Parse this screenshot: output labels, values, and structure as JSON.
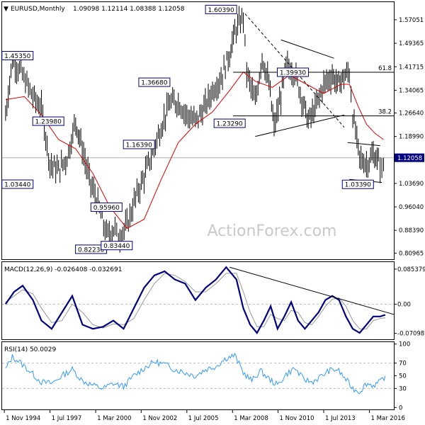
{
  "header": {
    "symbol": "EURUSD,Monthly",
    "ohlc": "1.09098 1.12114 1.08388 1.12058"
  },
  "watermark": "ActionForex.com",
  "colors": {
    "price": "#000000",
    "ma": "#e00000",
    "macd": "#000080",
    "signal": "#999999",
    "rsi": "#3399ff",
    "label_border": "#000080",
    "current_box": "#000080",
    "grid": "#bbbbbb"
  },
  "chart_data": [
    {
      "type": "candlestick",
      "panel": "price",
      "title": "EURUSD,Monthly",
      "ylim": [
        0.7897,
        1.6279
      ],
      "y_ticks": [
        "1.57051",
        "1.49365",
        "1.41715",
        "1.34065",
        "1.26640",
        "1.18990",
        "1.12058",
        "1.03690",
        "0.96040",
        "0.88390",
        "0.80965"
      ],
      "current_price": "1.12058",
      "series": [
        {
          "name": "price",
          "x": [
            1994.9,
            1995.3,
            1995.8,
            1996.5,
            1997.0,
            1997.5,
            1998.0,
            1998.5,
            1999.0,
            1999.3,
            1999.8,
            2000.3,
            2000.8,
            2001.3,
            2001.5,
            2002.0,
            2002.5,
            2003.0,
            2003.5,
            2004.0,
            2004.5,
            2005.0,
            2005.5,
            2006.0,
            2006.5,
            2007.0,
            2007.5,
            2008.0,
            2008.3,
            2008.8,
            2009.0,
            2009.5,
            2009.9,
            2010.3,
            2010.6,
            2011.0,
            2011.3,
            2011.8,
            2012.3,
            2012.6,
            2013.0,
            2013.5,
            2014.0,
            2014.3,
            2014.6,
            2015.0,
            2015.2,
            2015.6,
            2016.0,
            2016.4,
            2016.7,
            2016.9,
            2017.1
          ],
          "y": [
            1.26,
            1.44,
            1.4,
            1.32,
            1.28,
            1.1,
            1.08,
            1.12,
            1.24,
            1.17,
            1.05,
            0.97,
            0.87,
            0.89,
            0.86,
            0.9,
            0.99,
            1.06,
            1.14,
            1.22,
            1.3,
            1.3,
            1.26,
            1.24,
            1.28,
            1.34,
            1.38,
            1.46,
            1.53,
            1.58,
            1.4,
            1.3,
            1.45,
            1.36,
            1.22,
            1.32,
            1.42,
            1.4,
            1.3,
            1.24,
            1.28,
            1.36,
            1.39,
            1.36,
            1.38,
            1.4,
            1.26,
            1.12,
            1.1,
            1.13,
            1.11,
            1.08,
            1.12
          ]
        },
        {
          "name": "MA",
          "x": [
            1994.9,
            1996.0,
            1997.0,
            1998.0,
            1999.0,
            2000.0,
            2001.0,
            2002.0,
            2003.0,
            2004.0,
            2005.0,
            2006.0,
            2007.0,
            2008.0,
            2008.8,
            2009.5,
            2010.5,
            2011.5,
            2012.5,
            2013.5,
            2014.5,
            2015.0,
            2015.5,
            2016.0,
            2016.5,
            2017.0
          ],
          "y": [
            1.31,
            1.32,
            1.26,
            1.18,
            1.15,
            1.07,
            0.96,
            0.89,
            0.92,
            1.05,
            1.17,
            1.23,
            1.27,
            1.34,
            1.4,
            1.37,
            1.35,
            1.39,
            1.36,
            1.33,
            1.36,
            1.36,
            1.29,
            1.23,
            1.2,
            1.18
          ]
        }
      ],
      "annotations": [
        {
          "label": "1.45350",
          "x": 1995.6,
          "y": 1.4535
        },
        {
          "label": "1.23980",
          "x": 1997.4,
          "y": 1.2398
        },
        {
          "label": "1.03440",
          "x": 1995.6,
          "y": 1.0344
        },
        {
          "label": "0.82230",
          "x": 1999.9,
          "y": 0.8223
        },
        {
          "label": "0.95960",
          "x": 2000.8,
          "y": 0.9596
        },
        {
          "label": "0.83440",
          "x": 2001.4,
          "y": 0.8344
        },
        {
          "label": "1.16390",
          "x": 2002.7,
          "y": 1.1639
        },
        {
          "label": "1.36680",
          "x": 2003.6,
          "y": 1.3668
        },
        {
          "label": "1.60390",
          "x": 2007.5,
          "y": 1.6039
        },
        {
          "label": "1.23290",
          "x": 2008.0,
          "y": 1.2329
        },
        {
          "label": "1.39930",
          "x": 2011.7,
          "y": 1.3993
        },
        {
          "label": "1.03390",
          "x": 2015.5,
          "y": 1.0339
        }
      ],
      "fib_levels": [
        {
          "label": "61.8",
          "y": 1.3993,
          "x0": 2008.2,
          "x1": 2017.6
        },
        {
          "label": "38.2",
          "y": 1.257,
          "x0": 2008.2,
          "x1": 2017.6
        }
      ],
      "trendlines": [
        {
          "x0": 2008.9,
          "y0": 1.59,
          "x1": 2014.7,
          "y1": 1.22,
          "dashed": true
        },
        {
          "x0": 2011.0,
          "y0": 1.505,
          "x1": 2014.1,
          "y1": 1.445,
          "dashed": false
        },
        {
          "x0": 2009.5,
          "y0": 1.19,
          "x1": 2014.7,
          "y1": 1.26,
          "dashed": false
        },
        {
          "x0": 2014.9,
          "y0": 1.17,
          "x1": 2016.8,
          "y1": 1.16,
          "dashed": false
        },
        {
          "x0": 2015.0,
          "y0": 1.05,
          "x1": 2016.9,
          "y1": 1.04,
          "dashed": false
        }
      ]
    },
    {
      "type": "line",
      "panel": "macd",
      "title": "MACD(12,26,9) -0.026408 -0.032691",
      "ylim": [
        -0.0855,
        0.1025
      ],
      "y_ticks": [
        "0.085379",
        "0.00",
        "-0.070989"
      ],
      "series": [
        {
          "name": "MACD",
          "x": [
            1994.9,
            1995.4,
            1995.9,
            1996.5,
            1997.0,
            1997.6,
            1998.2,
            1998.8,
            1999.4,
            2000.0,
            2000.6,
            2001.2,
            2001.8,
            2002.4,
            2003.0,
            2003.6,
            2004.2,
            2004.8,
            2005.4,
            2006.0,
            2006.6,
            2007.2,
            2007.8,
            2008.4,
            2008.8,
            2009.2,
            2009.6,
            2010.0,
            2010.4,
            2010.8,
            2011.2,
            2011.6,
            2012.0,
            2012.4,
            2012.8,
            2013.2,
            2013.6,
            2014.0,
            2014.4,
            2014.8,
            2015.2,
            2015.6,
            2016.0,
            2016.4,
            2016.8,
            2017.1
          ],
          "y": [
            0.0,
            0.03,
            0.045,
            0.01,
            -0.04,
            -0.06,
            -0.02,
            0.02,
            -0.05,
            -0.06,
            -0.055,
            -0.04,
            -0.06,
            -0.01,
            0.04,
            0.07,
            0.08,
            0.06,
            0.05,
            0.01,
            0.04,
            0.06,
            0.09,
            0.06,
            -0.01,
            -0.05,
            -0.07,
            -0.04,
            -0.005,
            -0.06,
            -0.03,
            0.005,
            -0.04,
            -0.06,
            -0.04,
            -0.02,
            0.01,
            0.02,
            0.01,
            -0.03,
            -0.06,
            -0.07,
            -0.05,
            -0.03,
            -0.03,
            -0.026
          ]
        },
        {
          "name": "Signal",
          "x": [
            1994.9,
            1995.4,
            1995.9,
            1996.5,
            1997.0,
            1997.6,
            1998.2,
            1998.8,
            1999.4,
            2000.0,
            2000.6,
            2001.2,
            2001.8,
            2002.4,
            2003.0,
            2003.6,
            2004.2,
            2004.8,
            2005.4,
            2006.0,
            2006.6,
            2007.2,
            2007.8,
            2008.4,
            2008.8,
            2009.2,
            2009.6,
            2010.0,
            2010.4,
            2010.8,
            2011.2,
            2011.6,
            2012.0,
            2012.4,
            2012.8,
            2013.2,
            2013.6,
            2014.0,
            2014.4,
            2014.8,
            2015.2,
            2015.6,
            2016.0,
            2016.4,
            2016.8,
            2017.1
          ],
          "y": [
            0.005,
            0.02,
            0.035,
            0.025,
            -0.01,
            -0.045,
            -0.04,
            0.0,
            -0.02,
            -0.05,
            -0.058,
            -0.048,
            -0.05,
            -0.035,
            0.01,
            0.05,
            0.075,
            0.07,
            0.055,
            0.03,
            0.03,
            0.05,
            0.075,
            0.075,
            0.03,
            -0.02,
            -0.055,
            -0.055,
            -0.025,
            -0.035,
            -0.04,
            -0.015,
            -0.02,
            -0.045,
            -0.05,
            -0.03,
            -0.005,
            0.012,
            0.015,
            -0.005,
            -0.04,
            -0.06,
            -0.06,
            -0.04,
            -0.035,
            -0.033
          ]
        }
      ],
      "trendlines": [
        {
          "x0": 2008.0,
          "y0": 0.09,
          "x1": 2017.6,
          "y1": -0.025,
          "dashed": false
        }
      ]
    },
    {
      "type": "line",
      "panel": "rsi",
      "title": "RSI(14) 50.0029",
      "ylim": [
        -3,
        103
      ],
      "y_ticks": [
        "100",
        "70",
        "50",
        "30",
        "0"
      ],
      "levels": [
        70,
        30
      ],
      "series": [
        {
          "name": "RSI",
          "x": [
            1994.9,
            1995.3,
            1995.8,
            1996.4,
            1997.0,
            1997.6,
            1998.2,
            1998.8,
            1999.4,
            2000.0,
            2000.6,
            2001.2,
            2001.8,
            2002.4,
            2003.0,
            2003.6,
            2004.2,
            2004.8,
            2005.4,
            2006.0,
            2006.6,
            2007.2,
            2007.8,
            2008.3,
            2008.8,
            2009.3,
            2009.8,
            2010.3,
            2010.8,
            2011.3,
            2011.8,
            2012.3,
            2012.8,
            2013.3,
            2013.8,
            2014.3,
            2014.8,
            2015.2,
            2015.6,
            2016.0,
            2016.4,
            2016.8,
            2017.1
          ],
          "y": [
            60,
            80,
            70,
            55,
            40,
            38,
            50,
            60,
            42,
            35,
            30,
            38,
            33,
            50,
            62,
            72,
            68,
            60,
            55,
            50,
            60,
            65,
            78,
            82,
            55,
            42,
            58,
            45,
            35,
            52,
            62,
            45,
            40,
            48,
            58,
            60,
            44,
            30,
            25,
            38,
            35,
            40,
            50
          ]
        }
      ]
    }
  ],
  "x_axis": {
    "labels": [
      "1 Nov 1994",
      "1 Jul 1997",
      "1 Mar 2000",
      "1 Nov 2002",
      "1 Jul 2005",
      "1 Mar 2008",
      "1 Nov 2010",
      "1 Jul 2013",
      "1 Mar 2016"
    ],
    "values": [
      1994.83,
      1997.5,
      2000.17,
      2002.83,
      2005.5,
      2008.17,
      2010.83,
      2013.5,
      2016.17
    ],
    "range": [
      1994.7,
      2017.6
    ]
  }
}
